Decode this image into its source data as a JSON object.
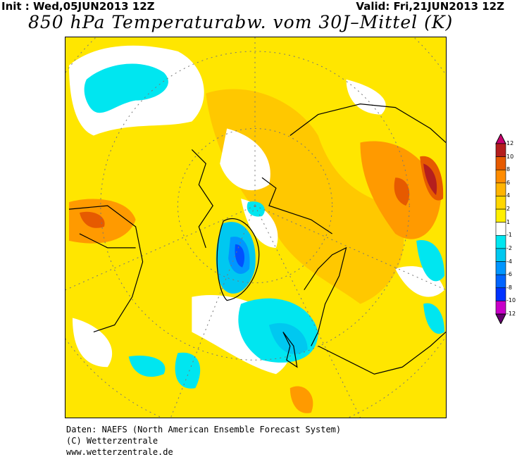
{
  "header": {
    "init": "Init : Wed,05JUN2013 12Z",
    "valid": "Valid: Fri,21JUN2013 12Z",
    "title": "850 hPa Temperaturabw. vom 30J–Mittel (K)"
  },
  "colorbar": {
    "labels": [
      "12",
      "10",
      "8",
      "6",
      "4",
      "2",
      "1",
      "-1",
      "-2",
      "-4",
      "-6",
      "-8",
      "-10",
      "-12"
    ],
    "colors_top_to_bottom": [
      "#c8006e",
      "#b41e1e",
      "#e65a00",
      "#ff8c00",
      "#ffb400",
      "#ffd700",
      "#fff000",
      "#ffffff",
      "#00e6f0",
      "#00c8f0",
      "#0096ff",
      "#0064ff",
      "#0032ff",
      "#c800c8",
      "#64006e"
    ]
  },
  "map": {
    "projection": "polar stereographic, northern hemisphere",
    "variable": "850 hPa temperature anomaly (K)"
  },
  "footer": {
    "line1": "Daten: NAEFS (North American Ensemble Forecast System)",
    "line2": "(C) Wetterzentrale",
    "line3": "www.wetterzentrale.de"
  }
}
